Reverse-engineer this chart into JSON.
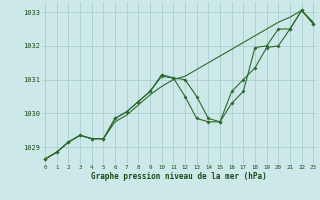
{
  "x": [
    0,
    1,
    2,
    3,
    4,
    5,
    6,
    7,
    8,
    9,
    10,
    11,
    12,
    13,
    14,
    15,
    16,
    17,
    18,
    19,
    20,
    21,
    22,
    23
  ],
  "series1": [
    1028.65,
    1028.85,
    1029.15,
    1029.35,
    1029.25,
    1029.25,
    1029.75,
    1029.95,
    1030.25,
    1030.55,
    1030.8,
    1031.0,
    1031.1,
    1031.3,
    1031.5,
    1031.7,
    1031.9,
    1032.1,
    1032.3,
    1032.5,
    1032.7,
    1032.85,
    1033.05,
    1032.7
  ],
  "series2": [
    1028.65,
    1028.85,
    1029.15,
    1029.35,
    1029.25,
    1029.25,
    1029.85,
    1030.05,
    1030.35,
    1030.65,
    1031.15,
    1031.05,
    1031.0,
    1030.5,
    1029.85,
    1029.75,
    1030.65,
    1031.0,
    1031.35,
    1031.95,
    1032.0,
    1032.5,
    1033.05,
    1032.65
  ],
  "series3": [
    1028.65,
    1028.85,
    1029.15,
    1029.35,
    1029.25,
    1029.25,
    1029.85,
    1030.05,
    1030.35,
    1030.65,
    1031.1,
    1031.05,
    1030.5,
    1029.85,
    1029.75,
    1029.75,
    1030.3,
    1030.65,
    1031.95,
    1032.0,
    1032.5,
    1032.5,
    1033.05,
    1032.65
  ],
  "line_color": "#2d6a2d",
  "bg_color": "#cce8e8",
  "grid_color": "#aacfcf",
  "text_color": "#1a4a1a",
  "xlabel": "Graphe pression niveau de la mer (hPa)",
  "ylim": [
    1028.5,
    1033.3
  ],
  "xlim": [
    -0.3,
    23.3
  ],
  "yticks": [
    1029,
    1030,
    1031,
    1032,
    1033
  ],
  "xticks": [
    0,
    1,
    2,
    3,
    4,
    5,
    6,
    7,
    8,
    9,
    10,
    11,
    12,
    13,
    14,
    15,
    16,
    17,
    18,
    19,
    20,
    21,
    22,
    23
  ]
}
